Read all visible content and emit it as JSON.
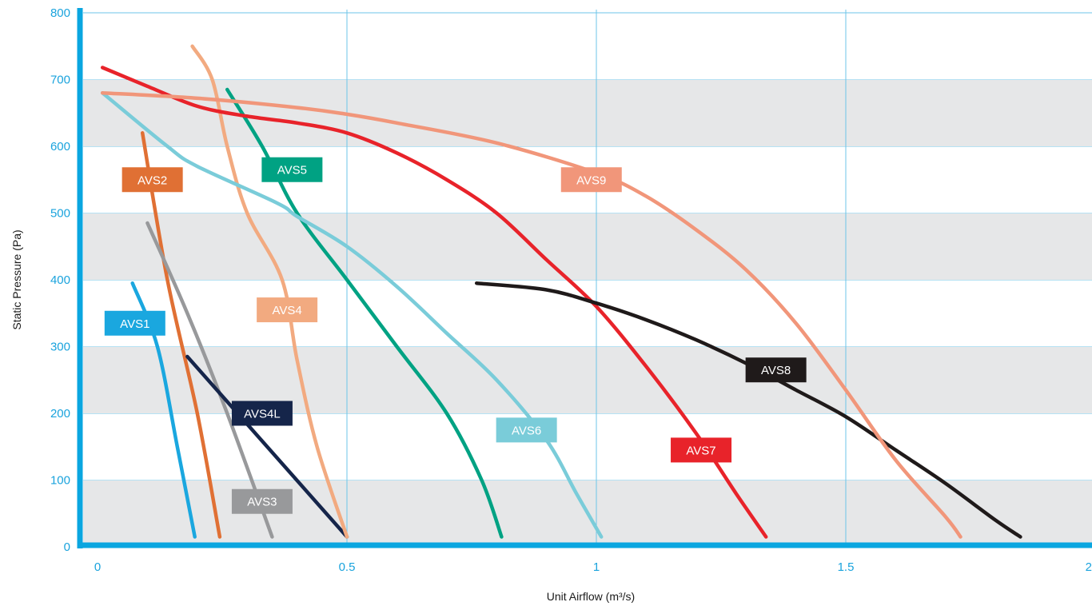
{
  "chart_data": {
    "type": "line",
    "xlabel": "Unit Airflow (m³/s)",
    "ylabel": "Static Pressure (Pa)",
    "xlim": [
      0,
      2
    ],
    "ylim": [
      0,
      800
    ],
    "x_ticks": [
      0,
      0.5,
      1,
      1.5,
      2
    ],
    "x_tick_labels": [
      "0",
      "0.5",
      "1",
      "1.5",
      "2"
    ],
    "y_ticks": [
      0,
      100,
      200,
      300,
      400,
      500,
      600,
      700,
      800
    ],
    "y_tick_labels": [
      "0",
      "100",
      "200",
      "300",
      "400",
      "500",
      "600",
      "700",
      "800"
    ],
    "grid": "vertical lines at 0.5, 1, 1.5; alternating grey horizontal bands",
    "series": [
      {
        "name": "AVS1",
        "color": "#1aa7df",
        "label_at": [
          0.075,
          335
        ],
        "points": [
          [
            0.07,
            395
          ],
          [
            0.12,
            300
          ],
          [
            0.16,
            150
          ],
          [
            0.195,
            15
          ]
        ]
      },
      {
        "name": "AVS2",
        "color": "#e07034",
        "label_at": [
          0.11,
          550
        ],
        "points": [
          [
            0.09,
            620
          ],
          [
            0.14,
            400
          ],
          [
            0.2,
            200
          ],
          [
            0.245,
            15
          ]
        ]
      },
      {
        "name": "AVS3",
        "color": "#98999b",
        "label_at": [
          0.33,
          68
        ],
        "points": [
          [
            0.1,
            485
          ],
          [
            0.18,
            350
          ],
          [
            0.26,
            200
          ],
          [
            0.35,
            15
          ]
        ]
      },
      {
        "name": "AVS4L",
        "color": "#15254a",
        "label_at": [
          0.33,
          200
        ],
        "points": [
          [
            0.18,
            285
          ],
          [
            0.34,
            150
          ],
          [
            0.5,
            15
          ]
        ]
      },
      {
        "name": "AVS4",
        "color": "#f2aa80",
        "label_at": [
          0.38,
          355
        ],
        "points": [
          [
            0.19,
            750
          ],
          [
            0.23,
            700
          ],
          [
            0.26,
            600
          ],
          [
            0.3,
            500
          ],
          [
            0.37,
            400
          ],
          [
            0.4,
            280
          ],
          [
            0.44,
            150
          ],
          [
            0.5,
            15
          ]
        ]
      },
      {
        "name": "AVS5",
        "color": "#00a283",
        "label_at": [
          0.39,
          565
        ],
        "points": [
          [
            0.26,
            685
          ],
          [
            0.33,
            600
          ],
          [
            0.4,
            500
          ],
          [
            0.5,
            400
          ],
          [
            0.6,
            300
          ],
          [
            0.7,
            200
          ],
          [
            0.77,
            100
          ],
          [
            0.81,
            15
          ]
        ]
      },
      {
        "name": "AVS6",
        "color": "#7accd9",
        "label_at": [
          0.86,
          175
        ],
        "points": [
          [
            0.01,
            680
          ],
          [
            0.14,
            600
          ],
          [
            0.2,
            570
          ],
          [
            0.36,
            515
          ],
          [
            0.4,
            495
          ],
          [
            0.5,
            450
          ],
          [
            0.6,
            390
          ],
          [
            0.7,
            320
          ],
          [
            0.8,
            250
          ],
          [
            0.9,
            160
          ],
          [
            0.96,
            80
          ],
          [
            1.01,
            15
          ]
        ]
      },
      {
        "name": "AVS7",
        "color": "#e8232a",
        "label_at": [
          1.21,
          145
        ],
        "points": [
          [
            0.01,
            718
          ],
          [
            0.1,
            690
          ],
          [
            0.2,
            660
          ],
          [
            0.3,
            645
          ],
          [
            0.4,
            635
          ],
          [
            0.5,
            620
          ],
          [
            0.6,
            590
          ],
          [
            0.7,
            550
          ],
          [
            0.8,
            500
          ],
          [
            0.9,
            430
          ],
          [
            1.0,
            360
          ],
          [
            1.1,
            270
          ],
          [
            1.2,
            170
          ],
          [
            1.28,
            80
          ],
          [
            1.34,
            15
          ]
        ]
      },
      {
        "name": "AVS8",
        "color": "#1f1a1a",
        "label_at": [
          1.36,
          265
        ],
        "points": [
          [
            0.76,
            395
          ],
          [
            0.9,
            385
          ],
          [
            1.0,
            365
          ],
          [
            1.1,
            340
          ],
          [
            1.2,
            310
          ],
          [
            1.3,
            275
          ],
          [
            1.4,
            235
          ],
          [
            1.5,
            195
          ],
          [
            1.6,
            145
          ],
          [
            1.7,
            95
          ],
          [
            1.8,
            40
          ],
          [
            1.85,
            15
          ]
        ]
      },
      {
        "name": "AVS9",
        "color": "#f1967a",
        "label_at": [
          0.99,
          550
        ],
        "points": [
          [
            0.01,
            680
          ],
          [
            0.2,
            672
          ],
          [
            0.4,
            658
          ],
          [
            0.5,
            648
          ],
          [
            0.6,
            635
          ],
          [
            0.8,
            605
          ],
          [
            1.0,
            560
          ],
          [
            1.1,
            525
          ],
          [
            1.2,
            475
          ],
          [
            1.3,
            415
          ],
          [
            1.4,
            335
          ],
          [
            1.5,
            235
          ],
          [
            1.6,
            130
          ],
          [
            1.7,
            45
          ],
          [
            1.73,
            15
          ]
        ]
      }
    ]
  }
}
